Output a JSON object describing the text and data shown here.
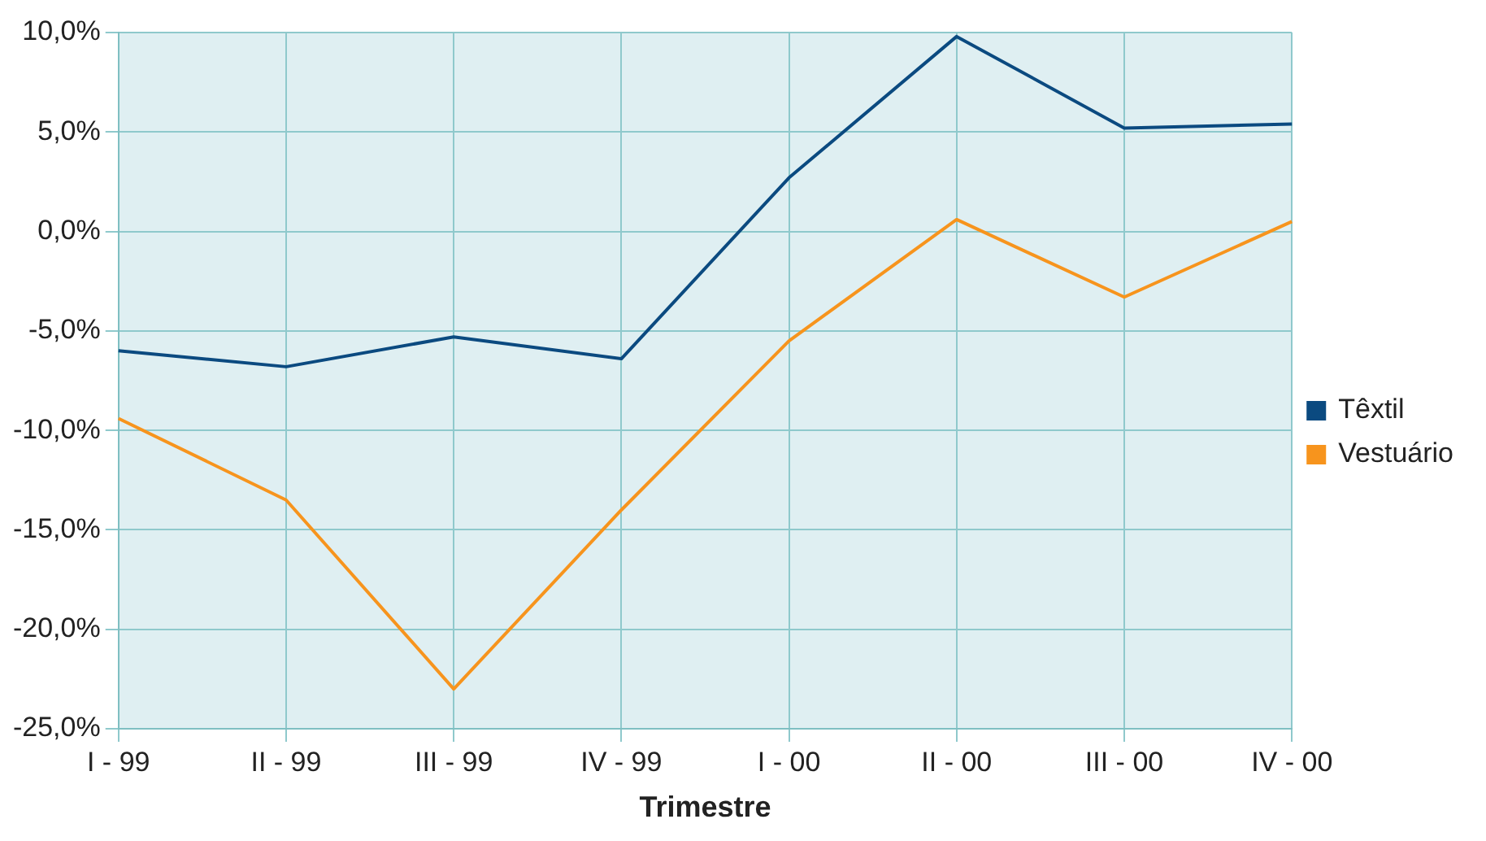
{
  "chart_data": {
    "type": "line",
    "xlabel": "Trimestre",
    "categories": [
      "I - 99",
      "II - 99",
      "III - 99",
      "IV - 99",
      "I - 00",
      "II - 00",
      "III - 00",
      "IV - 00"
    ],
    "series": [
      {
        "name": "Têxtil",
        "color": "#0b4a80",
        "values": [
          -6.0,
          -6.8,
          -5.3,
          -6.4,
          2.7,
          9.8,
          5.2,
          5.4
        ]
      },
      {
        "name": "Vestuário",
        "color": "#f7941d",
        "values": [
          -9.4,
          -13.5,
          -23.0,
          -14.0,
          -5.5,
          0.6,
          -3.3,
          0.5
        ]
      }
    ],
    "ylim": [
      -25,
      10
    ],
    "yticks": [
      {
        "value": -25,
        "label": "-25,0%"
      },
      {
        "value": -20,
        "label": "-20,0%"
      },
      {
        "value": -15,
        "label": "-15,0%"
      },
      {
        "value": -10,
        "label": "-10,0%"
      },
      {
        "value": -5,
        "label": "-5,0%"
      },
      {
        "value": 0,
        "label": "0,0%"
      },
      {
        "value": 5,
        "label": "5,0%"
      },
      {
        "value": 10,
        "label": "10,0%"
      }
    ],
    "grid": true,
    "legend": "right",
    "marker": "none",
    "line_style": "solid"
  }
}
